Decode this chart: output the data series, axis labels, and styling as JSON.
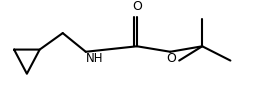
{
  "background_color": "#ffffff",
  "figsize": [
    2.56,
    1.1
  ],
  "dpi": 100,
  "xlim": [
    0.0,
    1.0
  ],
  "ylim": [
    0.05,
    0.95
  ]
}
